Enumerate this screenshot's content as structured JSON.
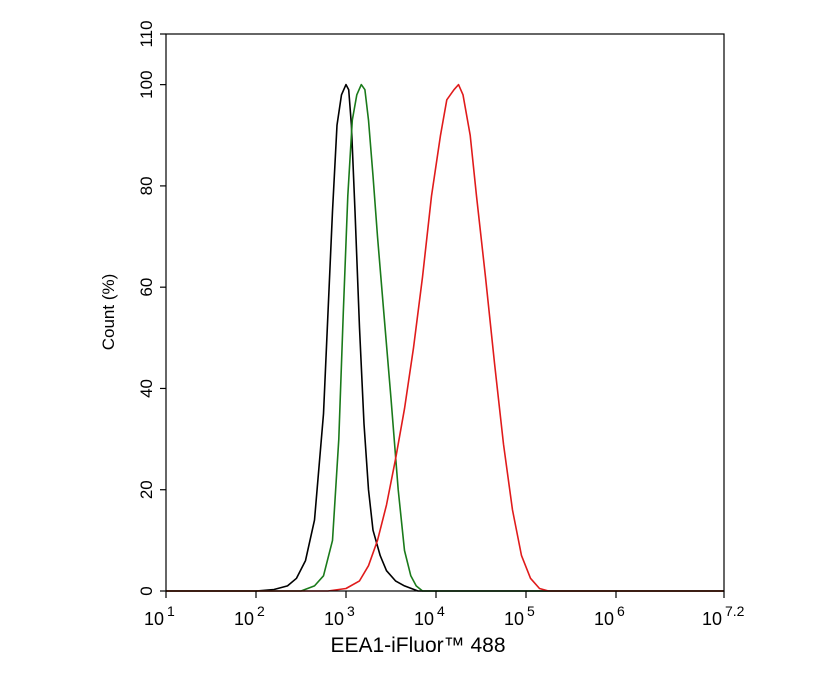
{
  "chart_data": {
    "type": "line",
    "title": "",
    "xlabel": "EEA1-iFluor™ 488",
    "ylabel": "Count  (%)",
    "x_scale": "log10",
    "xlim": [
      1,
      7.2
    ],
    "ylim": [
      0,
      110
    ],
    "x_ticks": [
      {
        "base": "10",
        "exp": "1",
        "value": 1
      },
      {
        "base": "10",
        "exp": "2",
        "value": 2
      },
      {
        "base": "10",
        "exp": "3",
        "value": 3
      },
      {
        "base": "10",
        "exp": "4",
        "value": 4
      },
      {
        "base": "10",
        "exp": "5",
        "value": 5
      },
      {
        "base": "10",
        "exp": "6",
        "value": 6
      },
      {
        "base": "10",
        "exp": "7.2",
        "value": 7.2
      }
    ],
    "y_ticks": [
      "0",
      "20",
      "40",
      "60",
      "80",
      "100",
      "110"
    ],
    "grid": false,
    "legend": "none",
    "series": [
      {
        "color": "#000000",
        "points": [
          [
            1.0,
            0
          ],
          [
            2.0,
            0
          ],
          [
            2.2,
            0.3
          ],
          [
            2.35,
            1
          ],
          [
            2.45,
            2.5
          ],
          [
            2.55,
            6
          ],
          [
            2.65,
            14
          ],
          [
            2.75,
            35
          ],
          [
            2.8,
            55
          ],
          [
            2.85,
            75
          ],
          [
            2.9,
            92
          ],
          [
            2.95,
            98
          ],
          [
            3.0,
            100
          ],
          [
            3.03,
            99
          ],
          [
            3.06,
            92
          ],
          [
            3.1,
            75
          ],
          [
            3.15,
            52
          ],
          [
            3.2,
            33
          ],
          [
            3.25,
            20
          ],
          [
            3.3,
            12
          ],
          [
            3.38,
            7
          ],
          [
            3.45,
            4
          ],
          [
            3.55,
            2
          ],
          [
            3.65,
            1
          ],
          [
            3.8,
            0
          ],
          [
            7.2,
            0
          ]
        ]
      },
      {
        "color": "#1a7a1a",
        "points": [
          [
            1.0,
            0
          ],
          [
            2.5,
            0
          ],
          [
            2.65,
            1
          ],
          [
            2.75,
            3
          ],
          [
            2.85,
            10
          ],
          [
            2.92,
            30
          ],
          [
            2.97,
            55
          ],
          [
            3.02,
            78
          ],
          [
            3.07,
            93
          ],
          [
            3.12,
            98
          ],
          [
            3.17,
            100
          ],
          [
            3.21,
            99
          ],
          [
            3.25,
            93
          ],
          [
            3.3,
            82
          ],
          [
            3.35,
            70
          ],
          [
            3.42,
            55
          ],
          [
            3.5,
            38
          ],
          [
            3.58,
            20
          ],
          [
            3.65,
            8
          ],
          [
            3.72,
            3
          ],
          [
            3.78,
            1
          ],
          [
            3.85,
            0
          ],
          [
            7.2,
            0
          ]
        ]
      },
      {
        "color": "#e01b1b",
        "points": [
          [
            1.0,
            0
          ],
          [
            2.8,
            0
          ],
          [
            3.0,
            0.5
          ],
          [
            3.15,
            2
          ],
          [
            3.25,
            5
          ],
          [
            3.35,
            10
          ],
          [
            3.45,
            17
          ],
          [
            3.55,
            26
          ],
          [
            3.65,
            36
          ],
          [
            3.75,
            48
          ],
          [
            3.85,
            62
          ],
          [
            3.95,
            78
          ],
          [
            4.05,
            90
          ],
          [
            4.12,
            97
          ],
          [
            4.2,
            99
          ],
          [
            4.25,
            100
          ],
          [
            4.3,
            98
          ],
          [
            4.38,
            90
          ],
          [
            4.45,
            78
          ],
          [
            4.55,
            62
          ],
          [
            4.65,
            45
          ],
          [
            4.75,
            29
          ],
          [
            4.85,
            16
          ],
          [
            4.95,
            7
          ],
          [
            5.05,
            2.5
          ],
          [
            5.15,
            0.5
          ],
          [
            5.25,
            0
          ],
          [
            7.2,
            0
          ]
        ]
      }
    ]
  }
}
